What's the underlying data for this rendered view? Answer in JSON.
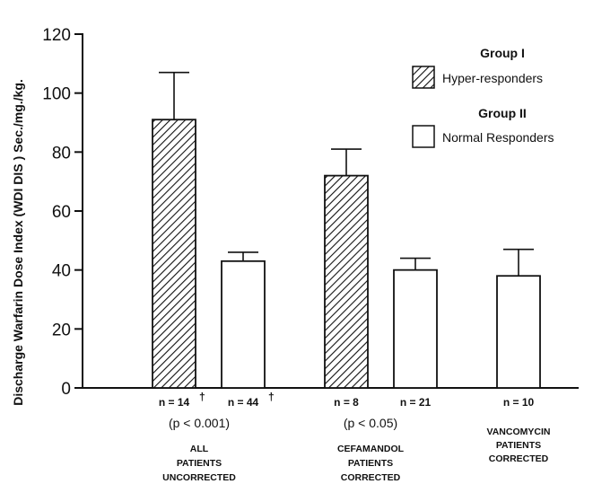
{
  "chart_data": {
    "type": "bar",
    "ylabel": "Discharge Warfarin Dose Index (WDI DIS ) Sec./mg./kg.",
    "ylim": [
      0,
      120
    ],
    "yticks": [
      "0",
      "20",
      "40",
      "60",
      "80",
      "100",
      "120"
    ],
    "legend": {
      "placement": "top-right",
      "entries": [
        {
          "group": "Group I",
          "label": "Hyper-responders",
          "pattern": "hatched"
        },
        {
          "group": "Group II",
          "label": "Normal Responders",
          "pattern": "open"
        }
      ]
    },
    "bars": [
      {
        "group": "Group I",
        "value": 91,
        "error": 16,
        "n_label": "n = 14",
        "mark": "†"
      },
      {
        "group": "Group II",
        "value": 43,
        "error": 3,
        "n_label": "n = 44",
        "mark": "†"
      },
      {
        "group": "Group I",
        "value": 72,
        "error": 9,
        "n_label": "n = 8",
        "mark": ""
      },
      {
        "group": "Group II",
        "value": 40,
        "error": 4,
        "n_label": "n = 21",
        "mark": ""
      },
      {
        "group": "Group II",
        "value": 38,
        "error": 9,
        "n_label": "n = 10",
        "mark": ""
      }
    ],
    "categories": [
      {
        "p_label": "(p < 0.001)",
        "lines": [
          "ALL",
          "PATIENTS",
          "UNCORRECTED"
        ]
      },
      {
        "p_label": "(p < 0.05)",
        "lines": [
          "CEFAMANDOL",
          "PATIENTS",
          "CORRECTED"
        ]
      },
      {
        "p_label": "",
        "lines": [
          "VANCOMYCIN",
          "PATIENTS",
          "CORRECTED"
        ]
      }
    ],
    "grid": false
  }
}
